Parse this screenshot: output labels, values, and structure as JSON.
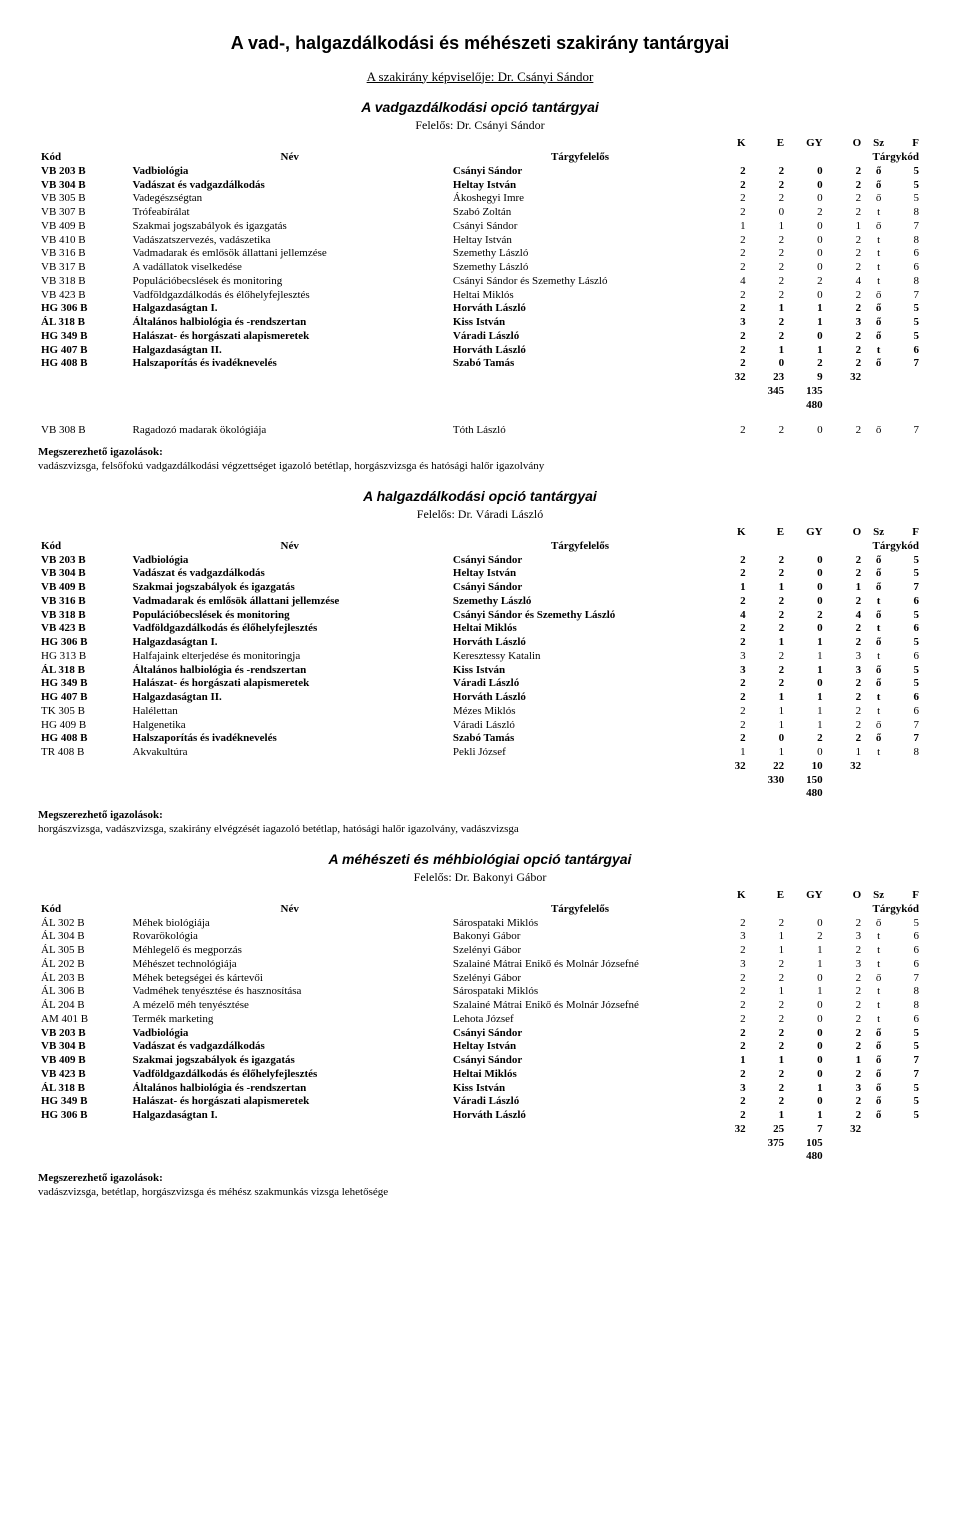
{
  "page_title": "A vad-, halgazdálkodási és méhészeti szakirány tantárgyai",
  "director_line": "A szakirány képviselője: Dr. Csányi Sándor",
  "col_headers": {
    "kod": "Kód",
    "nev": "Név",
    "targy": "Tárgyfelelős",
    "k": "K",
    "e": "E",
    "gy": "GY",
    "o": "O",
    "sz": "Sz",
    "f": "F",
    "targykod": "Tárgykód"
  },
  "cert_label": "Megszerezhető igazolások:",
  "sections": [
    {
      "title": "A vadgazdálkodási opció tantárgyai",
      "responsible": "Felelős: Dr. Csányi Sándor",
      "rows": [
        {
          "code": "VB 203 B",
          "name": "Vadbiológia",
          "pers": "Csányi Sándor",
          "k": "2",
          "e": "2",
          "gy": "0",
          "o": "2",
          "sz": "ő",
          "f": "5",
          "bold": true
        },
        {
          "code": "VB 304 B",
          "name": "Vadászat és vadgazdálkodás",
          "pers": "Heltay István",
          "k": "2",
          "e": "2",
          "gy": "0",
          "o": "2",
          "sz": "ő",
          "f": "5",
          "bold": true
        },
        {
          "code": "VB 305 B",
          "name": "Vadegészségtan",
          "pers": "Ákoshegyi Imre",
          "k": "2",
          "e": "2",
          "gy": "0",
          "o": "2",
          "sz": "ő",
          "f": "5"
        },
        {
          "code": "VB 307 B",
          "name": "Trófeabírálat",
          "pers": "Szabó Zoltán",
          "k": "2",
          "e": "0",
          "gy": "2",
          "o": "2",
          "sz": "t",
          "f": "8"
        },
        {
          "code": "VB 409 B",
          "name": "Szakmai jogszabályok és igazgatás",
          "pers": "Csányi Sándor",
          "k": "1",
          "e": "1",
          "gy": "0",
          "o": "1",
          "sz": "ő",
          "f": "7"
        },
        {
          "code": "VB 410 B",
          "name": "Vadászatszervezés, vadászetika",
          "pers": "Heltay István",
          "k": "2",
          "e": "2",
          "gy": "0",
          "o": "2",
          "sz": "t",
          "f": "8"
        },
        {
          "code": "VB 316 B",
          "name": "Vadmadarak és emlősök állattani jellemzése",
          "pers": "Szemethy László",
          "k": "2",
          "e": "2",
          "gy": "0",
          "o": "2",
          "sz": "t",
          "f": "6"
        },
        {
          "code": "VB 317 B",
          "name": "A vadállatok viselkedése",
          "pers": "Szemethy László",
          "k": "2",
          "e": "2",
          "gy": "0",
          "o": "2",
          "sz": "t",
          "f": "6"
        },
        {
          "code": "VB 318 B",
          "name": "Populációbecslések és monitoring",
          "pers": "Csányi Sándor és Szemethy László",
          "k": "4",
          "e": "2",
          "gy": "2",
          "o": "4",
          "sz": "t",
          "f": "8"
        },
        {
          "code": "VB 423 B",
          "name": "Vadföldgazdálkodás és élőhelyfejlesztés",
          "pers": "Heltai Miklós",
          "k": "2",
          "e": "2",
          "gy": "0",
          "o": "2",
          "sz": "ő",
          "f": "7"
        },
        {
          "code": "HG 306 B",
          "name": "Halgazdaságtan I.",
          "pers": "Horváth László",
          "k": "2",
          "e": "1",
          "gy": "1",
          "o": "2",
          "sz": "ő",
          "f": "5",
          "bold": true
        },
        {
          "code": "ÁL 318 B",
          "name": "Általános halbiológia és -rendszertan",
          "pers": "Kiss István",
          "k": "3",
          "e": "2",
          "gy": "1",
          "o": "3",
          "sz": "ő",
          "f": "5",
          "bold": true
        },
        {
          "code": "HG 349 B",
          "name": "Halászat- és horgászati alapismeretek",
          "pers": "Váradi László",
          "k": "2",
          "e": "2",
          "gy": "0",
          "o": "2",
          "sz": "ő",
          "f": "5",
          "bold": true
        },
        {
          "code": "HG 407 B",
          "name": "Halgazdaságtan II.",
          "pers": "Horváth László",
          "k": "2",
          "e": "1",
          "gy": "1",
          "o": "2",
          "sz": "t",
          "f": "6",
          "bold": true
        },
        {
          "code": "HG 408 B",
          "name": "Halszaporítás és ivadéknevelés",
          "pers": "Szabó Tamás",
          "k": "2",
          "e": "0",
          "gy": "2",
          "o": "2",
          "sz": "ő",
          "f": "7",
          "bold": true
        }
      ],
      "sumrows": [
        [
          "",
          "",
          "",
          "32",
          "23",
          "9",
          "32",
          "",
          ""
        ],
        [
          "",
          "",
          "",
          "",
          "345",
          "135",
          "",
          "",
          ""
        ],
        [
          "",
          "",
          "",
          "",
          "",
          "480",
          "",
          "",
          ""
        ]
      ],
      "extra_row": {
        "code": "VB 308 B",
        "name": "Ragadozó madarak ökológiája",
        "pers": "Tóth László",
        "k": "2",
        "e": "2",
        "gy": "0",
        "o": "2",
        "sz": "ő",
        "f": "7"
      },
      "cert": "vadászvizsga, felsőfokú vadgazdálkodási végzettséget igazoló betétlap, horgászvizsga és hatósági halőr igazolvány"
    },
    {
      "title": "A halgazdálkodási opció tantárgyai",
      "responsible": "Felelős: Dr. Váradi László",
      "rows": [
        {
          "code": "VB 203 B",
          "name": "Vadbiológia",
          "pers": "Csányi Sándor",
          "k": "2",
          "e": "2",
          "gy": "0",
          "o": "2",
          "sz": "ő",
          "f": "5",
          "bold": true
        },
        {
          "code": "VB 304 B",
          "name": "Vadászat és vadgazdálkodás",
          "pers": "Heltay István",
          "k": "2",
          "e": "2",
          "gy": "0",
          "o": "2",
          "sz": "ő",
          "f": "5",
          "bold": true
        },
        {
          "code": "VB 409 B",
          "name": "Szakmai jogszabályok és igazgatás",
          "pers": "Csányi Sándor",
          "k": "1",
          "e": "1",
          "gy": "0",
          "o": "1",
          "sz": "ő",
          "f": "7",
          "bold": true
        },
        {
          "code": "VB 316 B",
          "name": "Vadmadarak és emlősök állattani jellemzése",
          "pers": "Szemethy László",
          "k": "2",
          "e": "2",
          "gy": "0",
          "o": "2",
          "sz": "t",
          "f": "6",
          "bold": true
        },
        {
          "code": "VB 318 B",
          "name": "Populációbecslések és monitoring",
          "pers": "Csányi Sándor és Szemethy László",
          "k": "4",
          "e": "2",
          "gy": "2",
          "o": "4",
          "sz": "ő",
          "f": "5",
          "bold": true
        },
        {
          "code": "VB 423 B",
          "name": "Vadföldgazdálkodás és élőhelyfejlesztés",
          "pers": "Heltai Miklós",
          "k": "2",
          "e": "2",
          "gy": "0",
          "o": "2",
          "sz": "t",
          "f": "6",
          "bold": true
        },
        {
          "code": "HG 306 B",
          "name": "Halgazdaságtan I.",
          "pers": "Horváth László",
          "k": "2",
          "e": "1",
          "gy": "1",
          "o": "2",
          "sz": "ő",
          "f": "5",
          "bold": true
        },
        {
          "code": "HG 313 B",
          "name": "Halfajaink elterjedése és monitoringja",
          "pers": "Keresztessy Katalin",
          "k": "3",
          "e": "2",
          "gy": "1",
          "o": "3",
          "sz": "t",
          "f": "6"
        },
        {
          "code": "ÁL 318 B",
          "name": "Általános halbiológia és -rendszertan",
          "pers": "Kiss István",
          "k": "3",
          "e": "2",
          "gy": "1",
          "o": "3",
          "sz": "ő",
          "f": "5",
          "bold": true
        },
        {
          "code": "HG 349 B",
          "name": "Halászat- és horgászati alapismeretek",
          "pers": "Váradi László",
          "k": "2",
          "e": "2",
          "gy": "0",
          "o": "2",
          "sz": "ő",
          "f": "5",
          "bold": true
        },
        {
          "code": "HG 407 B",
          "name": "Halgazdaságtan II.",
          "pers": "Horváth László",
          "k": "2",
          "e": "1",
          "gy": "1",
          "o": "2",
          "sz": "t",
          "f": "6",
          "bold": true
        },
        {
          "code": "TK 305 B",
          "name": "Halélettan",
          "pers": "Mézes Miklós",
          "k": "2",
          "e": "1",
          "gy": "1",
          "o": "2",
          "sz": "t",
          "f": "6"
        },
        {
          "code": "HG 409 B",
          "name": "Halgenetika",
          "pers": "Váradi László",
          "k": "2",
          "e": "1",
          "gy": "1",
          "o": "2",
          "sz": "ő",
          "f": "7"
        },
        {
          "code": "HG 408 B",
          "name": "Halszaporítás és ivadéknevelés",
          "pers": "Szabó Tamás",
          "k": "2",
          "e": "0",
          "gy": "2",
          "o": "2",
          "sz": "ő",
          "f": "7",
          "bold": true
        },
        {
          "code": "TR 408 B",
          "name": "Akvakultúra",
          "pers": "Pekli József",
          "k": "1",
          "e": "1",
          "gy": "0",
          "o": "1",
          "sz": "t",
          "f": "8"
        }
      ],
      "sumrows": [
        [
          "",
          "",
          "",
          "32",
          "22",
          "10",
          "32",
          "",
          ""
        ],
        [
          "",
          "",
          "",
          "",
          "330",
          "150",
          "",
          "",
          ""
        ],
        [
          "",
          "",
          "",
          "",
          "",
          "480",
          "",
          "",
          ""
        ]
      ],
      "cert": "horgászvizsga, vadászvizsga, szakirány elvégzését iagazoló betétlap, hatósági halőr igazolvány, vadászvizsga"
    },
    {
      "title": "A méhészeti és méhbiológiai opció tantárgyai",
      "responsible": "Felelős: Dr. Bakonyi Gábor",
      "rows": [
        {
          "code": "ÁL 302 B",
          "name": "Méhek biológiája",
          "pers": "Sárospataki Miklós",
          "k": "2",
          "e": "2",
          "gy": "0",
          "o": "2",
          "sz": "ő",
          "f": "5"
        },
        {
          "code": "ÁL 304 B",
          "name": "Rovarökológia",
          "pers": "Bakonyi Gábor",
          "k": "3",
          "e": "1",
          "gy": "2",
          "o": "3",
          "sz": "t",
          "f": "6"
        },
        {
          "code": "ÁL 305 B",
          "name": "Méhlegelő és megporzás",
          "pers": "Szelényi Gábor",
          "k": "2",
          "e": "1",
          "gy": "1",
          "o": "2",
          "sz": "t",
          "f": "6"
        },
        {
          "code": "ÁL 202 B",
          "name": "Méhészet technológiája",
          "pers": "Szalainé Mátrai Enikő és Molnár Józsefné",
          "k": "3",
          "e": "2",
          "gy": "1",
          "o": "3",
          "sz": "t",
          "f": "6"
        },
        {
          "code": "ÁL 203 B",
          "name": "Méhek betegségei és kártevői",
          "pers": "Szelényi Gábor",
          "k": "2",
          "e": "2",
          "gy": "0",
          "o": "2",
          "sz": "ő",
          "f": "7"
        },
        {
          "code": "ÁL 306 B",
          "name": "Vadméhek tenyésztése és hasznosítása",
          "pers": "Sárospataki Miklós",
          "k": "2",
          "e": "1",
          "gy": "1",
          "o": "2",
          "sz": "t",
          "f": "8"
        },
        {
          "code": "ÁL 204 B",
          "name": "A mézelő méh tenyésztése",
          "pers": "Szalainé Mátrai Enikő és Molnár Józsefné",
          "k": "2",
          "e": "2",
          "gy": "0",
          "o": "2",
          "sz": "t",
          "f": "8"
        },
        {
          "code": "AM 401 B",
          "name": "Termék marketing",
          "pers": "Lehota József",
          "k": "2",
          "e": "2",
          "gy": "0",
          "o": "2",
          "sz": "t",
          "f": "6"
        },
        {
          "code": "VB 203 B",
          "name": "Vadbiológia",
          "pers": "Csányi Sándor",
          "k": "2",
          "e": "2",
          "gy": "0",
          "o": "2",
          "sz": "ő",
          "f": "5",
          "bold": true
        },
        {
          "code": "VB 304 B",
          "name": "Vadászat és vadgazdálkodás",
          "pers": "Heltay István",
          "k": "2",
          "e": "2",
          "gy": "0",
          "o": "2",
          "sz": "ő",
          "f": "5",
          "bold": true
        },
        {
          "code": "VB 409 B",
          "name": "Szakmai jogszabályok és igazgatás",
          "pers": "Csányi Sándor",
          "k": "1",
          "e": "1",
          "gy": "0",
          "o": "1",
          "sz": "ő",
          "f": "7",
          "bold": true
        },
        {
          "code": "VB 423 B",
          "name": "Vadföldgazdálkodás és élőhelyfejlesztés",
          "pers": "Heltai Miklós",
          "k": "2",
          "e": "2",
          "gy": "0",
          "o": "2",
          "sz": "ő",
          "f": "7",
          "bold": true
        },
        {
          "code": "ÁL 318 B",
          "name": "Általános halbiológia és -rendszertan",
          "pers": "Kiss István",
          "k": "3",
          "e": "2",
          "gy": "1",
          "o": "3",
          "sz": "ő",
          "f": "5",
          "bold": true
        },
        {
          "code": "HG 349 B",
          "name": "Halászat- és horgászati alapismeretek",
          "pers": "Váradi László",
          "k": "2",
          "e": "2",
          "gy": "0",
          "o": "2",
          "sz": "ő",
          "f": "5",
          "bold": true
        },
        {
          "code": "HG 306 B",
          "name": "Halgazdaságtan I.",
          "pers": "Horváth László",
          "k": "2",
          "e": "1",
          "gy": "1",
          "o": "2",
          "sz": "ő",
          "f": "5",
          "bold": true
        }
      ],
      "sumrows": [
        [
          "",
          "",
          "",
          "32",
          "25",
          "7",
          "32",
          "",
          ""
        ],
        [
          "",
          "",
          "",
          "",
          "375",
          "105",
          "",
          "",
          ""
        ],
        [
          "",
          "",
          "",
          "",
          "",
          "480",
          "",
          "",
          ""
        ]
      ],
      "cert": "vadászvizsga, betétlap, horgászvizsga és méhész szakmunkás vizsga lehetősége"
    }
  ]
}
